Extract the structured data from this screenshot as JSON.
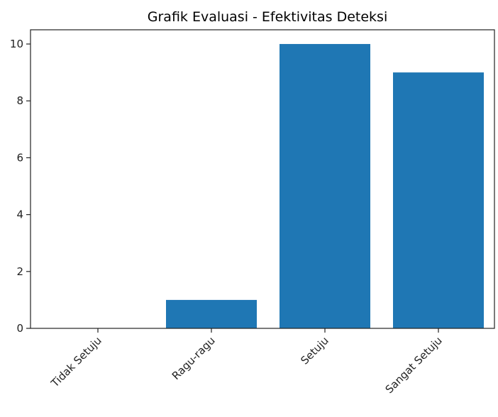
{
  "chart_data": {
    "type": "bar",
    "title": "Grafik Evaluasi - Efektivitas Deteksi",
    "categories": [
      "Tidak Setuju",
      "Ragu-ragu",
      "Setuju",
      "Sangat Setuju"
    ],
    "values": [
      0,
      1,
      10,
      9
    ],
    "xlabel": "",
    "ylabel": "",
    "ylim": [
      0,
      10.5
    ],
    "yticks": [
      0,
      2,
      4,
      6,
      8,
      10
    ],
    "bar_color": "#1f77b4",
    "grid": false,
    "legend": "none"
  }
}
